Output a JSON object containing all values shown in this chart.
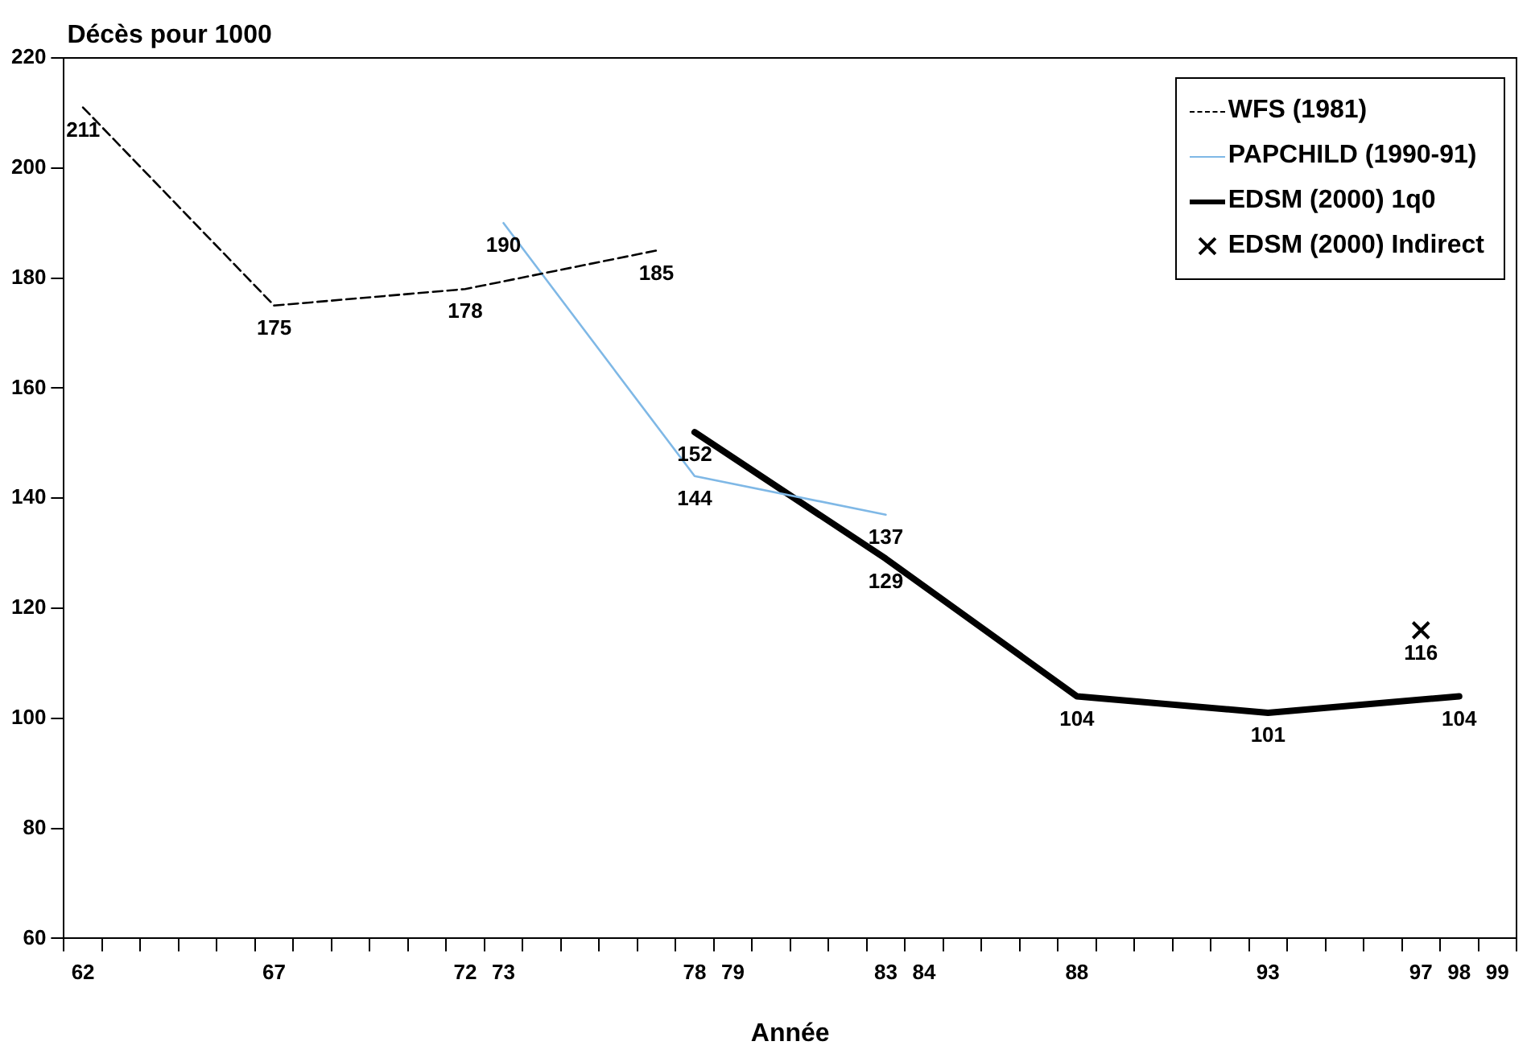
{
  "chart_data": {
    "type": "line",
    "ylabel": "Décès pour 1000",
    "xlabel": "Année",
    "categories": [
      "62",
      null,
      null,
      null,
      null,
      "67",
      null,
      null,
      null,
      null,
      "72",
      "73",
      null,
      null,
      null,
      null,
      "78",
      "79",
      null,
      null,
      null,
      "83",
      "84",
      null,
      null,
      null,
      "88",
      null,
      null,
      null,
      null,
      "93",
      null,
      null,
      null,
      "97",
      "98",
      "99"
    ],
    "series": [
      {
        "name": "WFS (1981)",
        "color": "#000000",
        "line_style": "dashed",
        "values": [
          211,
          null,
          null,
          null,
          null,
          175,
          null,
          null,
          null,
          null,
          178,
          null,
          null,
          null,
          null,
          185,
          null,
          null,
          null,
          null,
          null,
          null,
          null,
          null,
          null,
          null,
          null,
          null,
          null,
          null,
          null,
          null,
          null,
          null,
          null,
          null,
          null,
          null
        ]
      },
      {
        "name": "PAPCHILD (1990-91)",
        "color": "#7fb8e6",
        "values": [
          null,
          null,
          null,
          null,
          null,
          null,
          null,
          null,
          null,
          null,
          null,
          190,
          null,
          null,
          null,
          null,
          144,
          null,
          null,
          null,
          null,
          137,
          null,
          null,
          null,
          null,
          null,
          null,
          null,
          null,
          null,
          null,
          null,
          null,
          null,
          null,
          null,
          null
        ]
      },
      {
        "name": "EDSM (2000) 1q0",
        "color": "#000000",
        "values": [
          null,
          null,
          null,
          null,
          null,
          null,
          null,
          null,
          null,
          null,
          null,
          null,
          null,
          null,
          null,
          null,
          152,
          null,
          null,
          null,
          null,
          129,
          null,
          null,
          null,
          null,
          104,
          null,
          null,
          null,
          null,
          101,
          null,
          null,
          null,
          null,
          104,
          null
        ]
      },
      {
        "name": "EDSM (2000) Indirect",
        "type": "scatter",
        "color": "#000000",
        "marker": "cross",
        "values": [
          null,
          null,
          null,
          null,
          null,
          null,
          null,
          null,
          null,
          null,
          null,
          null,
          null,
          null,
          null,
          null,
          null,
          null,
          null,
          null,
          null,
          null,
          null,
          null,
          null,
          null,
          null,
          null,
          null,
          null,
          null,
          null,
          null,
          null,
          null,
          116,
          null,
          null
        ]
      }
    ],
    "ylim": [
      60,
      220
    ],
    "yticks": [
      60,
      80,
      100,
      120,
      140,
      160,
      180,
      200,
      220
    ],
    "grid": false,
    "legend": "top right",
    "marker": "none",
    "data_labels": true
  }
}
